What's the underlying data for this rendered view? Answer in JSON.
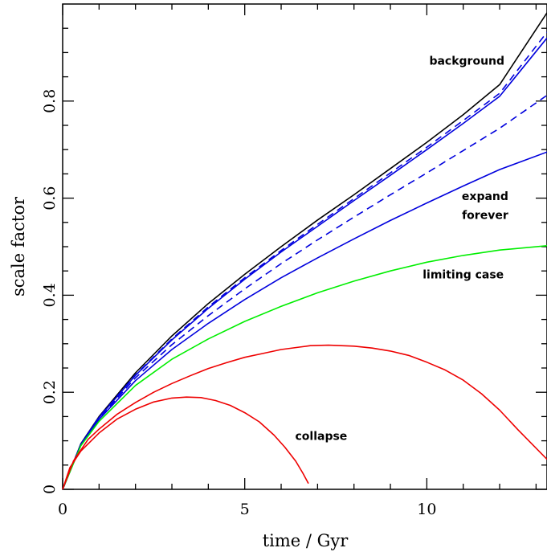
{
  "chart_data": {
    "type": "line",
    "xlabel": "time / Gyr",
    "ylabel": "scale factor",
    "xlim": [
      0,
      13.3
    ],
    "ylim": [
      0,
      1.0
    ],
    "x_ticks": [
      0,
      5,
      10
    ],
    "y_ticks": [
      0,
      0.2,
      0.4,
      0.6,
      0.8
    ],
    "x_tick_labels": [
      "0",
      "5",
      "10"
    ],
    "y_tick_labels": [
      "0",
      "0.2",
      "0.4",
      "0.6",
      "0.8"
    ],
    "grid": false,
    "annotations": [
      {
        "text": "background",
        "x": 11.1,
        "y": 0.875
      },
      {
        "text": "expand",
        "x": 11.6,
        "y": 0.596
      },
      {
        "text": "forever",
        "x": 11.6,
        "y": 0.557
      },
      {
        "text": "limiting case",
        "x": 11.0,
        "y": 0.435
      },
      {
        "text": "collapse",
        "x": 7.1,
        "y": 0.102
      }
    ],
    "colors": {
      "background": "#000000",
      "expand": "#0000dd",
      "limiting": "#00ee00",
      "collapse": "#ee0000"
    },
    "series": [
      {
        "color": "#000000",
        "dash": false,
        "x": [
          0,
          0.5,
          1,
          2,
          3,
          4,
          5,
          6,
          7,
          8,
          9,
          10,
          11,
          12,
          13.3
        ],
        "y": [
          0,
          0.094,
          0.15,
          0.24,
          0.316,
          0.383,
          0.443,
          0.5,
          0.555,
          0.607,
          0.661,
          0.715,
          0.772,
          0.834,
          0.982
        ]
      },
      {
        "color": "#0000dd",
        "dash": true,
        "x": [
          0,
          0.5,
          1,
          2,
          3,
          4,
          5,
          6,
          7,
          8,
          9,
          10,
          11,
          12,
          13.3
        ],
        "y": [
          0,
          0.093,
          0.149,
          0.236,
          0.31,
          0.376,
          0.436,
          0.492,
          0.546,
          0.599,
          0.652,
          0.705,
          0.76,
          0.816,
          0.942
        ]
      },
      {
        "color": "#0000dd",
        "dash": false,
        "x": [
          0,
          0.5,
          1,
          2,
          3,
          4,
          5,
          6,
          7,
          8,
          9,
          10,
          11,
          12,
          13.3
        ],
        "y": [
          0,
          0.093,
          0.148,
          0.235,
          0.308,
          0.373,
          0.433,
          0.489,
          0.542,
          0.595,
          0.647,
          0.7,
          0.754,
          0.81,
          0.93
        ]
      },
      {
        "color": "#0000dd",
        "dash": true,
        "x": [
          0,
          0.5,
          1,
          2,
          3,
          4,
          5,
          6,
          7,
          8,
          9,
          10,
          11,
          12,
          13.3
        ],
        "y": [
          0,
          0.092,
          0.146,
          0.23,
          0.298,
          0.358,
          0.413,
          0.465,
          0.514,
          0.561,
          0.607,
          0.652,
          0.698,
          0.744,
          0.812
        ]
      },
      {
        "color": "#0000dd",
        "dash": false,
        "x": [
          0,
          0.5,
          1,
          2,
          3,
          4,
          5,
          6,
          7,
          8,
          9,
          10,
          11,
          12,
          13.3
        ],
        "y": [
          0,
          0.091,
          0.144,
          0.224,
          0.288,
          0.342,
          0.391,
          0.436,
          0.477,
          0.516,
          0.554,
          0.59,
          0.625,
          0.659,
          0.695
        ]
      },
      {
        "color": "#00ee00",
        "dash": false,
        "x": [
          0,
          0.5,
          1,
          2,
          3,
          4,
          5,
          6,
          7,
          8,
          9,
          10,
          11,
          12,
          13.3
        ],
        "y": [
          0,
          0.09,
          0.14,
          0.214,
          0.268,
          0.31,
          0.346,
          0.377,
          0.405,
          0.429,
          0.45,
          0.468,
          0.482,
          0.493,
          0.502
        ]
      },
      {
        "color": "#ee0000",
        "dash": false,
        "x": [
          0,
          0.3,
          0.7,
          1.0,
          1.5,
          2.0,
          2.5,
          3.0,
          3.5,
          4.0,
          4.5,
          5.0,
          5.5,
          6.0,
          6.5,
          6.8,
          7.3,
          8.0,
          8.5,
          9.0,
          9.5,
          10.0,
          10.5,
          11.0,
          11.5,
          12.0,
          12.5,
          13.3
        ],
        "y": [
          0,
          0.059,
          0.103,
          0.124,
          0.155,
          0.179,
          0.2,
          0.218,
          0.234,
          0.249,
          0.261,
          0.272,
          0.28,
          0.288,
          0.293,
          0.296,
          0.297,
          0.295,
          0.291,
          0.285,
          0.276,
          0.262,
          0.246,
          0.225,
          0.197,
          0.163,
          0.123,
          0.062
        ]
      },
      {
        "color": "#ee0000",
        "dash": false,
        "x": [
          0,
          0.2,
          0.5,
          1.0,
          1.5,
          2.0,
          2.5,
          3.0,
          3.4,
          3.8,
          4.2,
          4.6,
          5.0,
          5.4,
          5.8,
          6.1,
          6.4,
          6.6,
          6.75
        ],
        "y": [
          0,
          0.045,
          0.079,
          0.116,
          0.145,
          0.165,
          0.18,
          0.188,
          0.19,
          0.189,
          0.183,
          0.173,
          0.158,
          0.139,
          0.112,
          0.087,
          0.058,
          0.033,
          0.012
        ]
      }
    ]
  }
}
